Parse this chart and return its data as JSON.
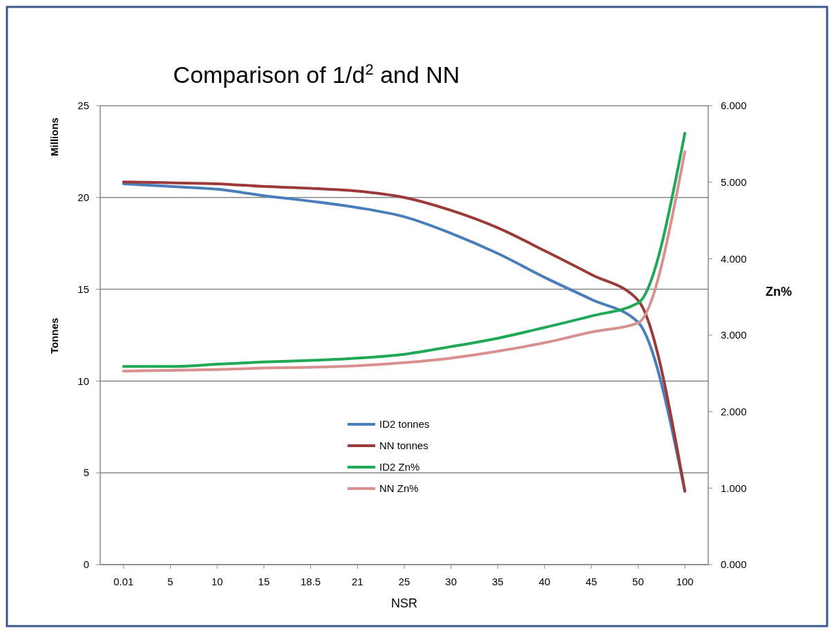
{
  "chart_data": {
    "type": "line",
    "title": "Comparison of 1/d$^{2}$ and NN",
    "xlabel": "NSR",
    "ylabel": "Tonnes",
    "y2label": "Zn%",
    "annotations": [
      "Millions"
    ],
    "categories": [
      "0.01",
      "5",
      "10",
      "15",
      "18.5",
      "21",
      "25",
      "30",
      "35",
      "40",
      "45",
      "50",
      "100"
    ],
    "ylim": [
      0,
      25
    ],
    "yticks": [
      0,
      5,
      10,
      15,
      20,
      25
    ],
    "y2lim": [
      0,
      6
    ],
    "y2ticks": [
      {
        "value": 0,
        "label": "0.000"
      },
      {
        "value": 1,
        "label": "1.000"
      },
      {
        "value": 2,
        "label": "2.000"
      },
      {
        "value": 3,
        "label": "3.000"
      },
      {
        "value": 4,
        "label": "4.000"
      },
      {
        "value": 5,
        "label": "5.000"
      },
      {
        "value": 6,
        "label": "6.000"
      }
    ],
    "grid": "y",
    "legend": "bottom",
    "series": [
      {
        "name": "ID2 tonnes",
        "color": "#4a7ebb",
        "values": [
          20.75,
          20.6,
          20.45,
          20.1,
          19.8,
          19.45,
          18.95,
          18.05,
          16.95,
          15.65,
          14.45,
          13.2,
          4.0
        ]
      },
      {
        "name": "NN tonnes",
        "color": "#9c3a3a",
        "values": [
          20.85,
          20.8,
          20.75,
          20.6,
          20.5,
          20.35,
          20.0,
          19.3,
          18.35,
          17.1,
          15.8,
          14.4,
          4.0
        ]
      },
      {
        "name": "ID2 Zn%",
        "color": "#1fa855",
        "axis": "y2",
        "values": [
          2.59,
          2.59,
          2.62,
          2.65,
          2.67,
          2.7,
          2.75,
          2.85,
          2.96,
          3.1,
          3.25,
          3.42,
          5.64
        ]
      },
      {
        "name": "NN Zn%",
        "color": "#d89090",
        "axis": "y2",
        "values": [
          2.53,
          2.54,
          2.55,
          2.57,
          2.58,
          2.6,
          2.64,
          2.7,
          2.79,
          2.9,
          3.04,
          3.16,
          5.4
        ]
      }
    ]
  }
}
